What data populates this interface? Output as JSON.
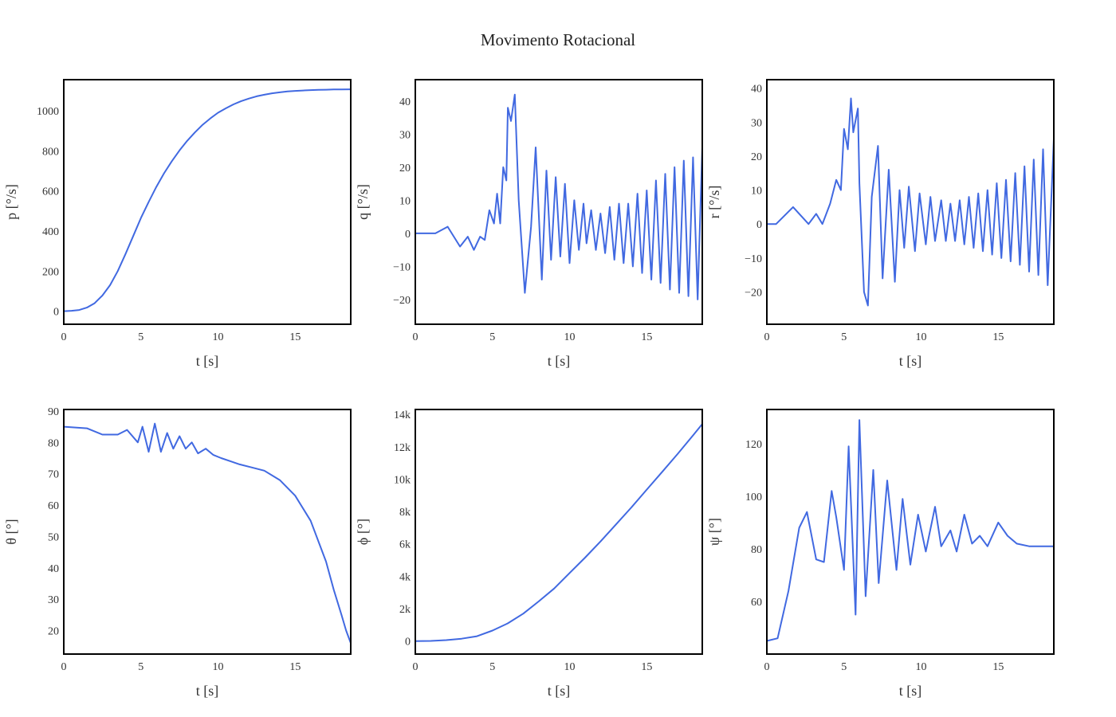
{
  "page": {
    "title": "Movimento Rotacional"
  },
  "colors": {
    "line": "#4169e1",
    "frame": "#000000"
  },
  "chart_data": [
    {
      "type": "line",
      "xlabel": "t [s]",
      "ylabel": "p [°/s]",
      "xlim": [
        0,
        18.6
      ],
      "ylim": [
        -65,
        1155
      ],
      "xticks": [
        0,
        5,
        10,
        15
      ],
      "xticklabels": [
        "0",
        "5",
        "10",
        "15"
      ],
      "yticks": [
        0,
        200,
        400,
        600,
        800,
        1000
      ],
      "yticklabels": [
        "0",
        "200",
        "400",
        "600",
        "800",
        "1000"
      ],
      "series": [
        {
          "x": [
            0,
            0.5,
            1,
            1.5,
            2,
            2.5,
            3,
            3.5,
            4,
            4.5,
            5,
            5.5,
            6,
            6.5,
            7,
            7.5,
            8,
            8.5,
            9,
            9.5,
            10,
            10.5,
            11,
            11.5,
            12,
            12.5,
            13,
            13.5,
            14,
            14.5,
            15,
            15.5,
            16,
            16.5,
            17,
            17.5,
            18,
            18.6
          ],
          "y": [
            0,
            2,
            6,
            18,
            40,
            78,
            130,
            200,
            285,
            375,
            465,
            545,
            620,
            688,
            748,
            802,
            850,
            892,
            930,
            962,
            990,
            1012,
            1032,
            1048,
            1061,
            1072,
            1080,
            1087,
            1092,
            1096,
            1099,
            1101,
            1103,
            1104,
            1105,
            1106,
            1106,
            1107
          ]
        }
      ]
    },
    {
      "type": "line",
      "xlabel": "t [s]",
      "ylabel": "q [°/s]",
      "xlim": [
        0,
        18.6
      ],
      "ylim": [
        -27.5,
        46.5
      ],
      "xticks": [
        0,
        5,
        10,
        15
      ],
      "xticklabels": [
        "0",
        "5",
        "10",
        "15"
      ],
      "yticks": [
        -20,
        -10,
        0,
        10,
        20,
        30,
        40
      ],
      "yticklabels": [
        "−20",
        "−10",
        "0",
        "10",
        "20",
        "30",
        "40"
      ],
      "series": [
        {
          "x": [
            0,
            1.3,
            2.1,
            2.9,
            3.4,
            3.8,
            4.2,
            4.5,
            4.8,
            5.1,
            5.3,
            5.5,
            5.7,
            5.9,
            6.0,
            6.2,
            6.45,
            6.7,
            7.1,
            7.5,
            7.8,
            8.2,
            8.5,
            8.8,
            9.1,
            9.4,
            9.7,
            10.0,
            10.3,
            10.6,
            10.9,
            11.1,
            11.4,
            11.7,
            12.0,
            12.3,
            12.6,
            12.9,
            13.2,
            13.5,
            13.8,
            14.1,
            14.4,
            14.7,
            15.0,
            15.3,
            15.6,
            15.9,
            16.2,
            16.5,
            16.8,
            17.1,
            17.4,
            17.7,
            18.0,
            18.3,
            18.6
          ],
          "y": [
            0,
            0,
            2,
            -4,
            -1,
            -5,
            -1,
            -2,
            7,
            3,
            12,
            3,
            20,
            16,
            38,
            34,
            42,
            10,
            -18,
            2,
            26,
            -14,
            19,
            -8,
            17,
            -7,
            15,
            -9,
            10,
            -5,
            9,
            -3,
            7,
            -5,
            6,
            -6,
            8,
            -8,
            9,
            -9,
            9,
            -10,
            12,
            -12,
            13,
            -14,
            16,
            -15,
            18,
            -17,
            20,
            -18,
            22,
            -19,
            23,
            -20,
            26
          ]
        }
      ]
    },
    {
      "type": "line",
      "xlabel": "t [s]",
      "ylabel": "r [°/s]",
      "xlim": [
        0,
        18.6
      ],
      "ylim": [
        -29.5,
        42.5
      ],
      "xticks": [
        0,
        5,
        10,
        15
      ],
      "xticklabels": [
        "0",
        "5",
        "10",
        "15"
      ],
      "yticks": [
        -20,
        -10,
        0,
        10,
        20,
        30,
        40
      ],
      "yticklabels": [
        "−20",
        "−10",
        "0",
        "10",
        "20",
        "30",
        "40"
      ],
      "series": [
        {
          "x": [
            0,
            0.6,
            1.7,
            2.7,
            3.2,
            3.6,
            4.1,
            4.5,
            4.8,
            5.0,
            5.25,
            5.45,
            5.6,
            5.9,
            6.0,
            6.3,
            6.55,
            6.8,
            7.2,
            7.5,
            7.9,
            8.3,
            8.6,
            8.9,
            9.2,
            9.6,
            9.9,
            10.3,
            10.6,
            10.9,
            11.3,
            11.6,
            11.9,
            12.2,
            12.5,
            12.8,
            13.1,
            13.4,
            13.7,
            14.0,
            14.3,
            14.6,
            14.9,
            15.2,
            15.5,
            15.8,
            16.1,
            16.4,
            16.7,
            17.0,
            17.3,
            17.6,
            17.9,
            18.2,
            18.6
          ],
          "y": [
            0,
            0,
            5,
            0,
            3,
            0,
            6,
            13,
            10,
            28,
            22,
            37,
            27,
            34,
            12,
            -20,
            -24,
            8,
            23,
            -16,
            16,
            -17,
            10,
            -7,
            11,
            -8,
            9,
            -6,
            8,
            -5,
            7,
            -5,
            6,
            -5,
            7,
            -6,
            8,
            -7,
            9,
            -8,
            10,
            -9,
            12,
            -10,
            13,
            -11,
            15,
            -12,
            17,
            -14,
            19,
            -15,
            22,
            -18,
            25
          ]
        }
      ]
    },
    {
      "type": "line",
      "xlabel": "t [s]",
      "ylabel": "θ  [°]",
      "xlim": [
        0,
        18.6
      ],
      "ylim": [
        12.5,
        90.5
      ],
      "xticks": [
        0,
        5,
        10,
        15
      ],
      "xticklabels": [
        "0",
        "5",
        "10",
        "15"
      ],
      "yticks": [
        20,
        30,
        40,
        50,
        60,
        70,
        80,
        90
      ],
      "yticklabels": [
        "20",
        "30",
        "40",
        "50",
        "60",
        "70",
        "80",
        "90"
      ],
      "series": [
        {
          "x": [
            0,
            1.5,
            2.5,
            3.5,
            4.1,
            4.8,
            5.1,
            5.5,
            5.9,
            6.3,
            6.7,
            7.1,
            7.5,
            7.9,
            8.3,
            8.7,
            9.2,
            9.7,
            10.2,
            10.8,
            11.4,
            12.2,
            13,
            14,
            15,
            16,
            17,
            17.5,
            18,
            18.3,
            18.6
          ],
          "y": [
            85,
            84.5,
            82.5,
            82.5,
            84,
            80,
            85,
            77,
            86,
            77,
            83,
            78,
            82,
            78,
            80,
            76.5,
            78,
            76,
            75,
            74,
            73,
            72,
            71,
            68,
            63,
            55,
            42,
            33,
            25,
            20,
            16
          ]
        }
      ]
    },
    {
      "type": "line",
      "xlabel": "t [s]",
      "ylabel": "ϕ  [°]",
      "xlim": [
        0,
        18.6
      ],
      "ylim": [
        -800,
        14300
      ],
      "xticks": [
        0,
        5,
        10,
        15
      ],
      "xticklabels": [
        "0",
        "5",
        "10",
        "15"
      ],
      "yticks": [
        0,
        2000,
        4000,
        6000,
        8000,
        10000,
        12000,
        14000
      ],
      "yticklabels": [
        "0",
        "2k",
        "4k",
        "6k",
        "8k",
        "10k",
        "12k",
        "14k"
      ],
      "series": [
        {
          "x": [
            0,
            1,
            2,
            3,
            4,
            5,
            6,
            7,
            8,
            9,
            10,
            11,
            12,
            13,
            14,
            15,
            16,
            17,
            18,
            18.6
          ],
          "y": [
            0,
            10,
            60,
            150,
            300,
            650,
            1100,
            1700,
            2450,
            3250,
            4200,
            5150,
            6150,
            7200,
            8250,
            9350,
            10450,
            11550,
            12700,
            13400
          ]
        }
      ]
    },
    {
      "type": "line",
      "xlabel": "t [s]",
      "ylabel": "ψ  [°]",
      "xlim": [
        0,
        18.6
      ],
      "ylim": [
        40,
        133
      ],
      "xticks": [
        0,
        5,
        10,
        15
      ],
      "xticklabels": [
        "0",
        "5",
        "10",
        "15"
      ],
      "yticks": [
        60,
        80,
        100,
        120
      ],
      "yticklabels": [
        "60",
        "80",
        "100",
        "120"
      ],
      "series": [
        {
          "x": [
            0,
            0.7,
            1.4,
            2.1,
            2.6,
            3.2,
            3.7,
            4.2,
            4.5,
            5.0,
            5.3,
            5.75,
            6.0,
            6.4,
            6.9,
            7.25,
            7.8,
            8.4,
            8.8,
            9.3,
            9.8,
            10.3,
            10.9,
            11.3,
            11.9,
            12.3,
            12.8,
            13.3,
            13.8,
            14.3,
            15.0,
            15.6,
            16.2,
            17.0,
            17.8,
            18.6
          ],
          "y": [
            45,
            46,
            64,
            88,
            94,
            76,
            75,
            102,
            92,
            72,
            119,
            55,
            129,
            62,
            110,
            67,
            106,
            72,
            99,
            74,
            93,
            79,
            96,
            81,
            87,
            79,
            93,
            82,
            85,
            81,
            90,
            85,
            82,
            81,
            81,
            81
          ]
        }
      ]
    }
  ]
}
